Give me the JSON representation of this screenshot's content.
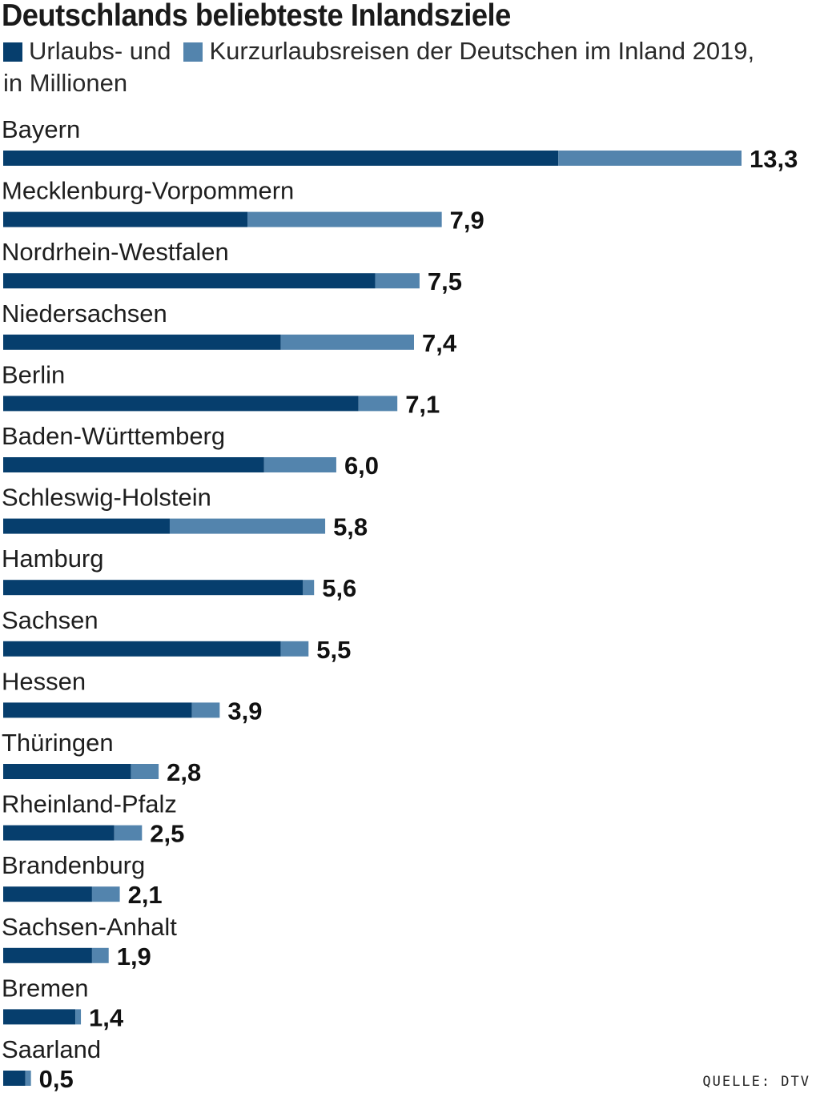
{
  "header": {
    "title": "Deutschlands beliebteste Inlandsziele",
    "legend_item_1": "Urlaubs- und",
    "legend_item_2": "Kurzurlaubsreisen der Deutschen im Inland 2019,",
    "unit": "in Millionen"
  },
  "source": "QUELLE: DTV",
  "colors": {
    "urlaub": "#063e6d",
    "kurzurlaub": "#5384ad"
  },
  "chart_data": {
    "type": "bar",
    "orientation": "horizontal",
    "stacked": true,
    "title": "Deutschlands beliebteste Inlandsziele",
    "subtitle": "in Millionen",
    "grid": false,
    "legend_position": "top-left",
    "xlim": [
      0,
      13.3
    ],
    "categories": [
      "Bayern",
      "Mecklenburg-Vorpommern",
      "Nordrhein-Westfalen",
      "Niedersachsen",
      "Berlin",
      "Baden-Württemberg",
      "Schleswig-Holstein",
      "Hamburg",
      "Sachsen",
      "Hessen",
      "Thüringen",
      "Rheinland-Pfalz",
      "Brandenburg",
      "Sachsen-Anhalt",
      "Bremen",
      "Saarland"
    ],
    "series": [
      {
        "name": "Urlaubs- und",
        "values": [
          10.0,
          4.4,
          6.7,
          5.0,
          6.4,
          4.7,
          3.0,
          5.4,
          5.0,
          3.4,
          2.3,
          2.0,
          1.6,
          1.6,
          1.3,
          0.4
        ]
      },
      {
        "name": "Kurzurlaubsreisen",
        "values": [
          3.3,
          3.5,
          0.8,
          2.4,
          0.7,
          1.3,
          2.8,
          0.2,
          0.5,
          0.5,
          0.5,
          0.5,
          0.5,
          0.3,
          0.1,
          0.1
        ]
      }
    ],
    "totals": [
      13.3,
      7.9,
      7.5,
      7.4,
      7.1,
      6.0,
      5.8,
      5.6,
      5.5,
      3.9,
      2.8,
      2.5,
      2.1,
      1.9,
      1.4,
      0.5
    ],
    "total_labels": [
      "13,3",
      "7,9",
      "7,5",
      "7,4",
      "7,1",
      "6,0",
      "5,8",
      "5,6",
      "5,5",
      "3,9",
      "2,8",
      "2,5",
      "2,1",
      "1,9",
      "1,4",
      "0,5"
    ]
  }
}
